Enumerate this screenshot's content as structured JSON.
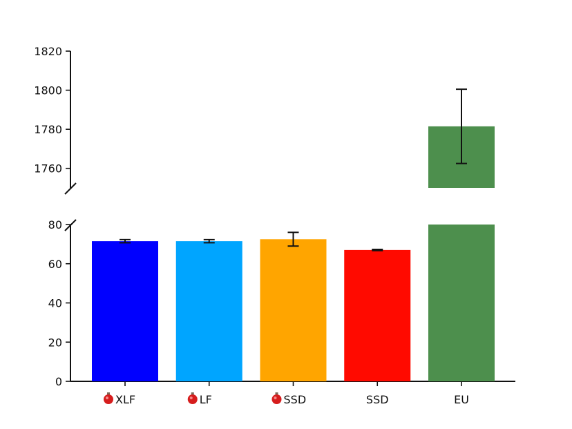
{
  "chart_data": {
    "type": "bar",
    "broken_y_axis": true,
    "categories": [
      "XLF",
      "LF",
      "SSD",
      "SSD",
      "EU"
    ],
    "category_markers": [
      "flask-icon",
      "flask-icon",
      "flask-icon",
      "",
      ""
    ],
    "values": [
      71.5,
      71.5,
      72.5,
      67,
      1781.5
    ],
    "errors": [
      0.8,
      0.8,
      3.5,
      0.3,
      19
    ],
    "colors": [
      "#0000ff",
      "#00a5ff",
      "#ffa500",
      "#ff0a00",
      "#4d8f4d"
    ],
    "lower_ylim": [
      0,
      80
    ],
    "upper_ylim": [
      1750,
      1820
    ],
    "lower_ticks": [
      "0",
      "20",
      "40",
      "60",
      "80"
    ],
    "upper_ticks": [
      "1760",
      "1780",
      "1800",
      "1820"
    ],
    "title": "",
    "xlabel": "",
    "ylabel": "",
    "grid": false,
    "legend": "none"
  }
}
